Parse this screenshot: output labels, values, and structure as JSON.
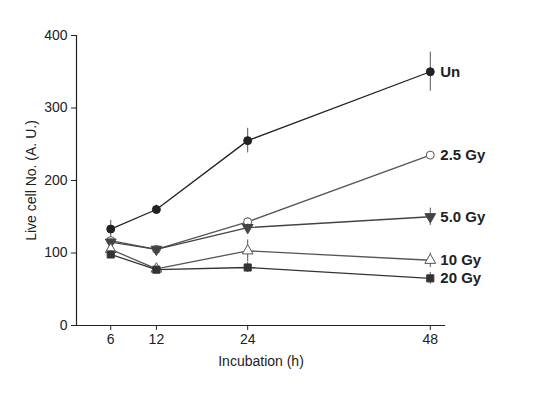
{
  "chart_data": {
    "type": "line",
    "x_label": "Incubation (h)",
    "y_label": "Live cell No. (A. U.)",
    "x": [
      6,
      12,
      24,
      48
    ],
    "xlim": [
      1.5,
      50
    ],
    "xticks": [
      6,
      12,
      24,
      48
    ],
    "ylim": [
      0,
      400
    ],
    "yticks": [
      0,
      100,
      200,
      300,
      400
    ],
    "grid": false,
    "series": [
      {
        "name": "Un",
        "color": "#222222",
        "marker": "circle",
        "values": [
          133,
          160,
          255,
          350
        ],
        "errors": [
          12,
          6,
          17,
          27
        ]
      },
      {
        "name": "2.5 Gy",
        "color": "#555555",
        "marker": "circle-open",
        "values": [
          117,
          105,
          143,
          235
        ],
        "errors": [
          5,
          4,
          6,
          3
        ]
      },
      {
        "name": "5.0 Gy",
        "color": "#444444",
        "marker": "triangle-down",
        "values": [
          115,
          105,
          135,
          150
        ],
        "errors": [
          5,
          3,
          5,
          12
        ]
      },
      {
        "name": "10 Gy",
        "color": "#555555",
        "marker": "triangle-open",
        "values": [
          105,
          78,
          103,
          90
        ],
        "errors": [
          6,
          5,
          15,
          10
        ]
      },
      {
        "name": "20 Gy",
        "color": "#333333",
        "marker": "square",
        "values": [
          98,
          77,
          80,
          65
        ],
        "errors": [
          5,
          5,
          7,
          8
        ]
      }
    ]
  }
}
